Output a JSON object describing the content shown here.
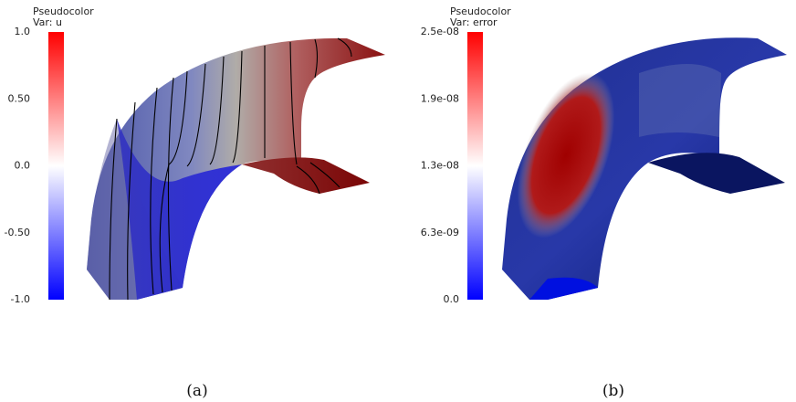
{
  "panels": [
    {
      "legend": {
        "title": "Pseudocolor",
        "var": "Var: u",
        "ticks": [
          "1.0",
          "0.50",
          "0.0",
          "-0.50",
          "-1.0"
        ]
      },
      "caption": "(a)"
    },
    {
      "legend": {
        "title": "Pseudocolor",
        "var": "Var: error",
        "ticks": [
          "2.5e-08",
          "1.9e-08",
          "1.3e-08",
          "6.3e-09",
          "0.0"
        ]
      },
      "caption": "(b)"
    }
  ]
}
